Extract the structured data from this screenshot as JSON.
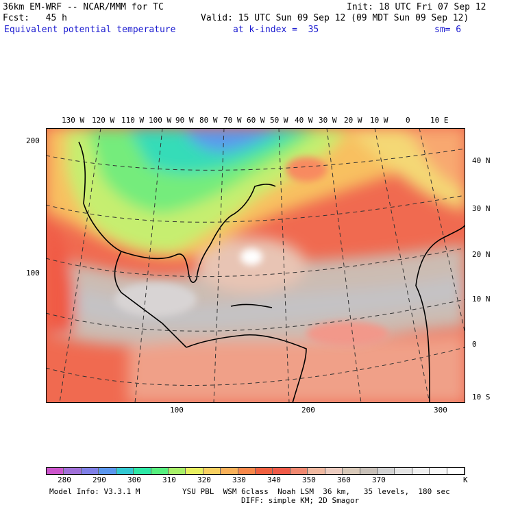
{
  "header": {
    "title": "36km EM-WRF -- NCAR/MMM for TC",
    "init": "Init: 18 UTC Fri 07 Sep 12",
    "fcst": "Fcst:   45 h",
    "valid": "Valid: 15 UTC Sun 09 Sep 12 (09 MDT Sun 09 Sep 12)",
    "field": "Equivalent potential temperature",
    "level": "at k-index =  35",
    "smooth": "sm= 6"
  },
  "map": {
    "lon_labels": [
      "130 W",
      "120 W",
      "110 W",
      "100 W",
      "90 W",
      "80 W",
      "70 W",
      "60 W",
      "50 W",
      "40 W",
      "30 W",
      "20 W",
      "10 W",
      "0",
      "10 E"
    ],
    "lat_labels": [
      "40 N",
      "30 N",
      "20 N",
      "10 N",
      "0",
      "10 S"
    ],
    "y_grid_labels": [
      "200",
      "100"
    ],
    "x_grid_labels": [
      "100",
      "200",
      "300"
    ]
  },
  "colorbar": {
    "colors": [
      "#cc55cc",
      "#a070d8",
      "#7f7fe6",
      "#5a96ee",
      "#32c8d2",
      "#2ee8a6",
      "#56ef7e",
      "#a8f068",
      "#e8f060",
      "#f8d060",
      "#f8b058",
      "#f8884a",
      "#f06040",
      "#f05a48",
      "#f08870",
      "#f0b8a0",
      "#ecccc0",
      "#d8c8b8",
      "#c8c0b8",
      "#d2d2d2",
      "#e4e4e4",
      "#f0f0f0",
      "#f8f8f8",
      "#ffffff"
    ],
    "labels": [
      "280",
      "290",
      "300",
      "310",
      "320",
      "330",
      "340",
      "350",
      "360",
      "370"
    ],
    "unit": "K"
  },
  "footer": {
    "model_info": "Model Info: V3.3.1 M",
    "physics": "YSU PBL  WSM 6class  Noah LSM  36 km,   35 levels,  180 sec",
    "diffusion": "DIFF: simple KM; 2D Smagor"
  }
}
